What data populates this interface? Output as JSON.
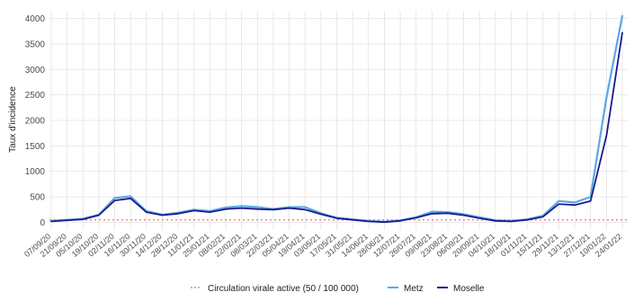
{
  "chart_data": {
    "type": "line",
    "title": "",
    "xlabel": "",
    "ylabel": "Taux d'incidence",
    "ylim": [
      -150,
      4150
    ],
    "yticks": [
      0,
      500,
      1000,
      1500,
      2000,
      2500,
      3000,
      3500,
      4000
    ],
    "categories": [
      "07/09/20",
      "21/09/20",
      "05/10/20",
      "19/10/20",
      "02/11/20",
      "16/11/20",
      "30/11/20",
      "14/12/20",
      "28/12/20",
      "11/01/21",
      "25/01/21",
      "08/02/21",
      "22/02/21",
      "08/03/21",
      "22/03/21",
      "05/04/21",
      "19/04/21",
      "03/05/21",
      "17/05/21",
      "31/05/21",
      "14/06/21",
      "28/06/21",
      "12/07/21",
      "26/07/21",
      "09/08/21",
      "23/08/21",
      "06/09/21",
      "20/09/21",
      "04/10/21",
      "18/10/21",
      "01/11/21",
      "15/11/21",
      "29/11/21",
      "13/12/21",
      "27/12/21",
      "10/01/22",
      "24/01/22"
    ],
    "threshold": {
      "name": "Circulation virale active (50 / 100 000)",
      "value": 50,
      "color": "#f08080"
    },
    "series": [
      {
        "name": "Metz",
        "color": "#5aa9e6",
        "values": [
          30,
          50,
          70,
          150,
          480,
          510,
          220,
          150,
          190,
          250,
          220,
          290,
          320,
          300,
          260,
          300,
          300,
          180,
          90,
          60,
          30,
          10,
          40,
          100,
          210,
          200,
          160,
          100,
          40,
          30,
          60,
          130,
          420,
          390,
          500,
          2450,
          4050
        ]
      },
      {
        "name": "Moselle",
        "color": "#1a1a8c",
        "values": [
          20,
          40,
          60,
          140,
          430,
          470,
          200,
          140,
          170,
          230,
          200,
          260,
          280,
          260,
          250,
          280,
          250,
          160,
          80,
          50,
          20,
          5,
          30,
          90,
          170,
          180,
          140,
          80,
          30,
          20,
          50,
          110,
          360,
          340,
          420,
          1700,
          3720
        ]
      }
    ],
    "legend_position": "bottom",
    "grid": true
  },
  "legend": {
    "threshold_label": "Circulation virale active (50 / 100 000)",
    "metz_label": "Metz",
    "moselle_label": "Moselle"
  }
}
